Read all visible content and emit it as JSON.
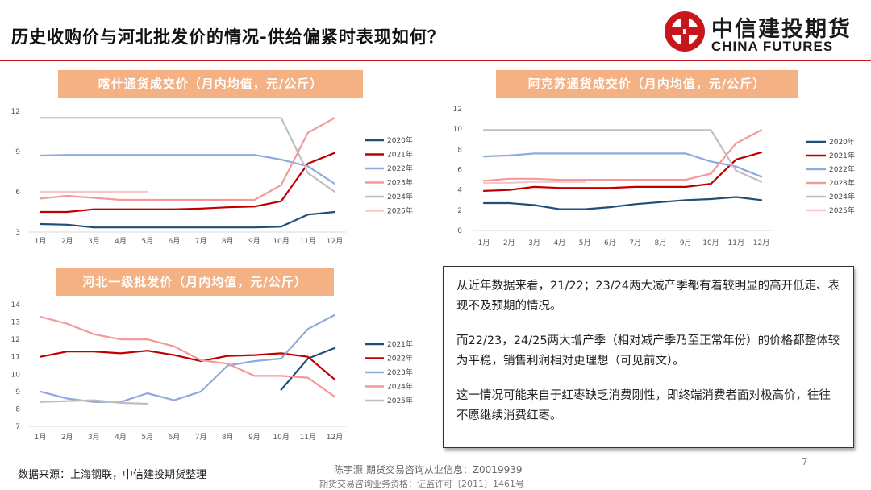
{
  "header": {
    "title": "历史收购价与河北批发价的情况-供给偏紧时表现如何？",
    "logo_cn": "中信建投期货",
    "logo_en": "CHINA FUTURES"
  },
  "colors": {
    "s2020": "#1f4e79",
    "s2021": "#c00000",
    "s2022": "#8faadc",
    "s2023": "#f4999b",
    "s2024": "#bfbfbf",
    "s2025": "#f8c6c7",
    "title_bg": "#f4b183",
    "accent": "#c8161d"
  },
  "chart_data": [
    {
      "type": "line",
      "title": "喀什通货成交价（月内均值，元/公斤）",
      "categories": [
        "1月",
        "2月",
        "3月",
        "4月",
        "5月",
        "6月",
        "7月",
        "8月",
        "9月",
        "10月",
        "11月",
        "12月"
      ],
      "ylim": [
        3,
        12
      ],
      "yticks": [
        3,
        6,
        9,
        12
      ],
      "grid": false,
      "legend": "right",
      "series": [
        {
          "name": "2020年",
          "color": "#1f4e79",
          "values": [
            3.6,
            3.55,
            3.35,
            3.35,
            3.35,
            3.35,
            3.35,
            3.35,
            3.35,
            3.4,
            4.3,
            4.5
          ]
        },
        {
          "name": "2021年",
          "color": "#c00000",
          "values": [
            4.5,
            4.5,
            4.7,
            4.7,
            4.7,
            4.7,
            4.75,
            4.85,
            4.9,
            5.3,
            8.1,
            8.9
          ]
        },
        {
          "name": "2022年",
          "color": "#8faadc",
          "values": [
            8.7,
            8.75,
            8.75,
            8.75,
            8.75,
            8.75,
            8.75,
            8.75,
            8.75,
            8.4,
            7.9,
            6.6
          ]
        },
        {
          "name": "2023年",
          "color": "#f4999b",
          "values": [
            5.5,
            5.7,
            5.55,
            5.4,
            5.4,
            5.4,
            5.4,
            5.4,
            5.4,
            6.5,
            10.4,
            11.5
          ]
        },
        {
          "name": "2024年",
          "color": "#bfbfbf",
          "values": [
            11.5,
            11.5,
            11.5,
            11.5,
            11.5,
            11.5,
            11.5,
            11.5,
            11.5,
            11.5,
            7.4,
            6.0
          ]
        },
        {
          "name": "2025年",
          "color": "#f8c6c7",
          "values": [
            6.0,
            6.0,
            6.0,
            6.0,
            6.0,
            null,
            null,
            null,
            null,
            null,
            null,
            null
          ]
        }
      ]
    },
    {
      "type": "line",
      "title": "阿克苏通货成交价（月内均值，元/公斤）",
      "categories": [
        "1月",
        "2月",
        "3月",
        "4月",
        "5月",
        "6月",
        "7月",
        "8月",
        "9月",
        "10月",
        "11月",
        "12月"
      ],
      "ylim": [
        0,
        12
      ],
      "yticks": [
        0,
        2,
        4,
        6,
        8,
        10,
        12
      ],
      "grid": false,
      "legend": "right",
      "series": [
        {
          "name": "2020年",
          "color": "#1f4e79",
          "values": [
            2.7,
            2.7,
            2.5,
            2.1,
            2.1,
            2.3,
            2.6,
            2.8,
            3.0,
            3.1,
            3.3,
            3.0
          ]
        },
        {
          "name": "2021年",
          "color": "#c00000",
          "values": [
            3.9,
            4.0,
            4.3,
            4.2,
            4.2,
            4.2,
            4.3,
            4.3,
            4.3,
            4.6,
            7.0,
            7.7
          ]
        },
        {
          "name": "2022年",
          "color": "#8faadc",
          "values": [
            7.3,
            7.4,
            7.6,
            7.6,
            7.6,
            7.6,
            7.6,
            7.6,
            7.6,
            6.8,
            6.3,
            5.3
          ]
        },
        {
          "name": "2023年",
          "color": "#f4999b",
          "values": [
            4.9,
            5.1,
            5.1,
            5.0,
            5.0,
            5.0,
            5.0,
            5.0,
            5.0,
            5.6,
            8.6,
            9.9
          ]
        },
        {
          "name": "2024年",
          "color": "#bfbfbf",
          "values": [
            9.9,
            9.9,
            9.9,
            9.9,
            9.9,
            9.9,
            9.9,
            9.9,
            9.9,
            9.9,
            5.9,
            4.8
          ]
        },
        {
          "name": "2025年",
          "color": "#f8c6c7",
          "values": [
            4.7,
            4.7,
            4.8,
            4.8,
            4.8,
            null,
            null,
            null,
            null,
            null,
            null,
            null
          ]
        }
      ]
    },
    {
      "type": "line",
      "title": "河北一级批发价（月内均值，元/公斤）",
      "categories": [
        "1月",
        "2月",
        "3月",
        "4月",
        "5月",
        "6月",
        "7月",
        "8月",
        "9月",
        "10月",
        "11月",
        "12月"
      ],
      "ylim": [
        7,
        14
      ],
      "yticks": [
        7,
        8,
        9,
        10,
        11,
        12,
        13,
        14
      ],
      "grid": false,
      "legend": "right",
      "series": [
        {
          "name": "2021年",
          "color": "#1f4e79",
          "values": [
            null,
            null,
            null,
            null,
            null,
            null,
            null,
            null,
            null,
            9.1,
            10.9,
            11.5
          ]
        },
        {
          "name": "2022年",
          "color": "#c00000",
          "values": [
            11.0,
            11.3,
            11.3,
            11.2,
            11.35,
            11.1,
            10.75,
            11.05,
            11.1,
            11.2,
            11.0,
            9.7
          ]
        },
        {
          "name": "2023年",
          "color": "#8faadc",
          "values": [
            9.0,
            8.6,
            8.4,
            8.4,
            8.9,
            8.5,
            9.0,
            10.5,
            10.75,
            10.9,
            12.6,
            13.4
          ]
        },
        {
          "name": "2024年",
          "color": "#f4999b",
          "values": [
            13.3,
            12.9,
            12.3,
            12.0,
            12.0,
            11.6,
            10.8,
            10.6,
            9.9,
            9.9,
            9.8,
            8.7
          ]
        },
        {
          "name": "2025年",
          "color": "#bfbfbf",
          "values": [
            8.4,
            8.45,
            8.5,
            8.35,
            8.3,
            null,
            null,
            null,
            null,
            null,
            null,
            null
          ]
        }
      ]
    }
  ],
  "textbox": {
    "p1": "从近年数据来看，21/22；23/24两大减产季都有着较明显的高开低走、表现不及预期的情况。",
    "p2": "而22/23，24/25两大增产季（相对减产季乃至正常年份）的价格都整体较为平稳，销售利润相对更理想（可见前文）。",
    "p3": "这一情况可能来自于红枣缺乏消费刚性，即终端消费者面对极高价，往往不愿继续消费红枣。"
  },
  "footer": {
    "source": "数据来源：上海钢联，中信建投期货整理",
    "analyst": "陈宇灏 期货交易咨询从业信息：Z0019939",
    "license": "期货交易咨询业务资格：证监许可〔2011〕1461号",
    "page": "7"
  }
}
